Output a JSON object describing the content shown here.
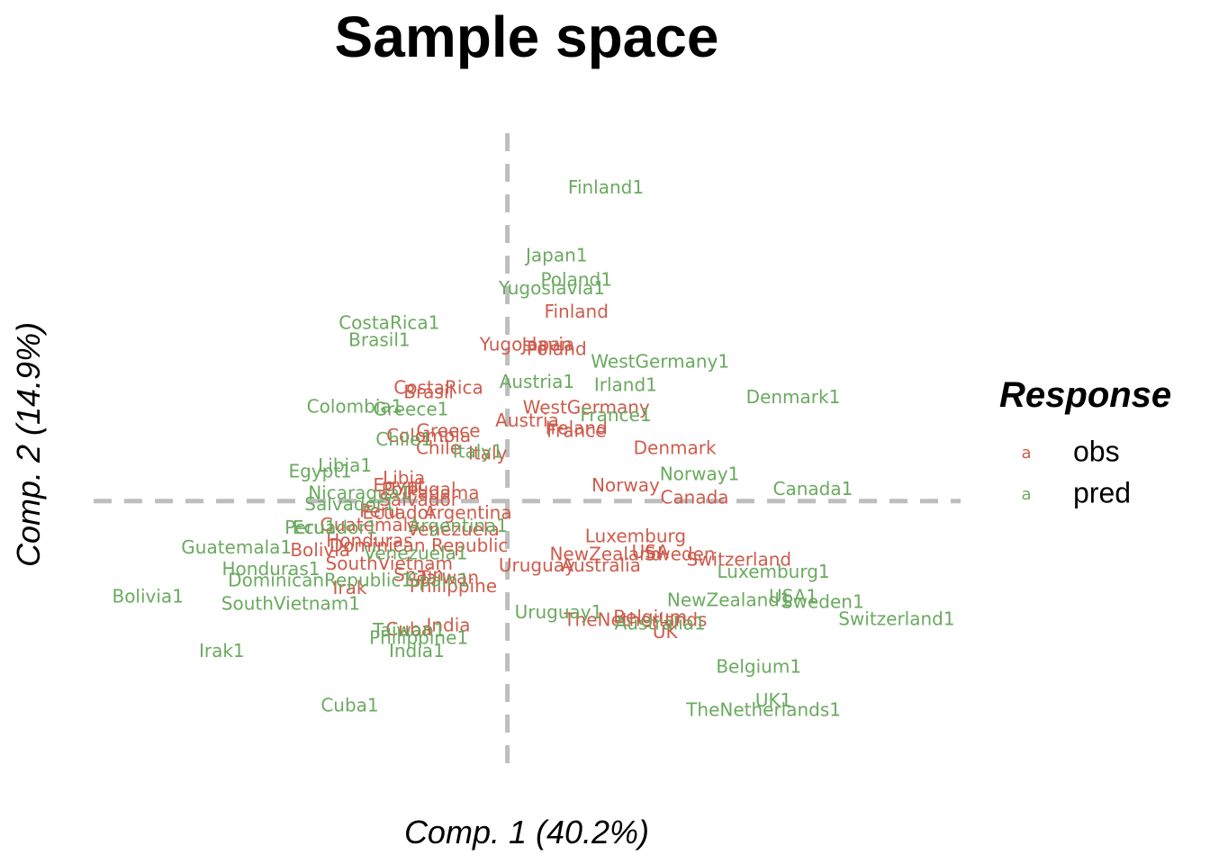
{
  "chart_data": {
    "type": "scatter",
    "title": "Sample space",
    "xlabel": "Comp. 1 (40.2%)",
    "ylabel": "Comp. 2 (14.9%)",
    "xlim": [
      -4.2,
      4.6
    ],
    "ylim": [
      -3.14,
      4.26
    ],
    "reference_lines": {
      "x": 0,
      "y": 0,
      "style": "dashed",
      "color": "#bebebe"
    },
    "grid": false,
    "legend": {
      "title": "Response",
      "position": "right",
      "key_glyph": "a"
    },
    "series": [
      {
        "name": "obs",
        "color": "#cd5c4c",
        "points": [
          {
            "label": "Finland",
            "x": 0.7,
            "y": 2.18
          },
          {
            "label": "Yugoslavia",
            "x": 0.2,
            "y": 1.8
          },
          {
            "label": "Japan",
            "x": 0.4,
            "y": 1.8
          },
          {
            "label": "Poland",
            "x": 0.5,
            "y": 1.75
          },
          {
            "label": "CostaRica",
            "x": -0.7,
            "y": 1.3
          },
          {
            "label": "Brasil",
            "x": -0.8,
            "y": 1.25
          },
          {
            "label": "Austria",
            "x": 0.2,
            "y": 0.92
          },
          {
            "label": "WestGermany",
            "x": 0.8,
            "y": 1.07
          },
          {
            "label": "Ireland",
            "x": 0.7,
            "y": 0.83
          },
          {
            "label": "France",
            "x": 0.7,
            "y": 0.8
          },
          {
            "label": "Greece",
            "x": -0.6,
            "y": 0.8
          },
          {
            "label": "Colombia",
            "x": -0.8,
            "y": 0.74
          },
          {
            "label": "Chile",
            "x": -0.7,
            "y": 0.6
          },
          {
            "label": "Italy",
            "x": -0.2,
            "y": 0.54
          },
          {
            "label": "Denmark",
            "x": 1.7,
            "y": 0.6
          },
          {
            "label": "Norway",
            "x": 1.2,
            "y": 0.17
          },
          {
            "label": "Canada",
            "x": 1.9,
            "y": 0.03
          },
          {
            "label": "Libia",
            "x": -1.05,
            "y": 0.25
          },
          {
            "label": "Egypt",
            "x": -1.1,
            "y": 0.17
          },
          {
            "label": "Portugal",
            "x": -0.9,
            "y": 0.12
          },
          {
            "label": "Panama",
            "x": -0.65,
            "y": 0.08
          },
          {
            "label": "Salvador",
            "x": -0.9,
            "y": 0.0
          },
          {
            "label": "Peru",
            "x": -1.3,
            "y": -0.13
          },
          {
            "label": "Ecuador",
            "x": -1.1,
            "y": -0.15
          },
          {
            "label": "Argentina",
            "x": -0.4,
            "y": -0.15
          },
          {
            "label": "Guatemala",
            "x": -1.4,
            "y": -0.29
          },
          {
            "label": "Venezuela",
            "x": -0.55,
            "y": -0.34
          },
          {
            "label": "Honduras",
            "x": -1.4,
            "y": -0.47
          },
          {
            "label": "Bolivia",
            "x": -1.9,
            "y": -0.58
          },
          {
            "label": "Dominican Republic",
            "x": -0.9,
            "y": -0.53
          },
          {
            "label": "SouthVietnam",
            "x": -1.2,
            "y": -0.74
          },
          {
            "label": "Spain",
            "x": -0.9,
            "y": -0.87
          },
          {
            "label": "Taiwan",
            "x": -0.6,
            "y": -0.9
          },
          {
            "label": "Philippine",
            "x": -0.55,
            "y": -1.0
          },
          {
            "label": "Irak",
            "x": -1.6,
            "y": -1.02
          },
          {
            "label": "Cuba",
            "x": -1.0,
            "y": -1.5
          },
          {
            "label": "India",
            "x": -0.6,
            "y": -1.45
          },
          {
            "label": "Luxemburg",
            "x": 1.3,
            "y": -0.42
          },
          {
            "label": "NewZealand",
            "x": 1.0,
            "y": -0.63
          },
          {
            "label": "USA",
            "x": 1.45,
            "y": -0.6
          },
          {
            "label": "Sweden",
            "x": 1.75,
            "y": -0.63
          },
          {
            "label": "Switzerland",
            "x": 2.35,
            "y": -0.69
          },
          {
            "label": "Uruguay",
            "x": 0.3,
            "y": -0.76
          },
          {
            "label": "Australia",
            "x": 0.95,
            "y": -0.76
          },
          {
            "label": "Belgium",
            "x": 1.45,
            "y": -1.36
          },
          {
            "label": "TheNetherlands",
            "x": 1.3,
            "y": -1.39
          },
          {
            "label": "UK",
            "x": 1.6,
            "y": -1.53
          }
        ]
      },
      {
        "name": "pred",
        "color": "#6aaa5f",
        "points": [
          {
            "label": "Finland1",
            "x": 1.0,
            "y": 3.62
          },
          {
            "label": "Japan1",
            "x": 0.5,
            "y": 2.83
          },
          {
            "label": "Poland1",
            "x": 0.7,
            "y": 2.55
          },
          {
            "label": "Yugoslavia1",
            "x": 0.45,
            "y": 2.45
          },
          {
            "label": "CostaRica1",
            "x": -1.2,
            "y": 2.05
          },
          {
            "label": "Brasil1",
            "x": -1.3,
            "y": 1.85
          },
          {
            "label": "WestGermany1",
            "x": 1.55,
            "y": 1.6
          },
          {
            "label": "Austria1",
            "x": 0.3,
            "y": 1.37
          },
          {
            "label": "Irland1",
            "x": 1.2,
            "y": 1.33
          },
          {
            "label": "Denmark1",
            "x": 2.9,
            "y": 1.19
          },
          {
            "label": "Colombia1",
            "x": -1.55,
            "y": 1.08
          },
          {
            "label": "Greece1",
            "x": -0.98,
            "y": 1.05
          },
          {
            "label": "France1",
            "x": 1.1,
            "y": 0.98
          },
          {
            "label": "Chile1",
            "x": -1.05,
            "y": 0.7
          },
          {
            "label": "Italy1",
            "x": -0.3,
            "y": 0.56
          },
          {
            "label": "Libia1",
            "x": -1.65,
            "y": 0.4
          },
          {
            "label": "Egypt1",
            "x": -1.9,
            "y": 0.33
          },
          {
            "label": "Norway1",
            "x": 1.95,
            "y": 0.3
          },
          {
            "label": "Nicaragua1",
            "x": -1.5,
            "y": 0.08
          },
          {
            "label": "Canada1",
            "x": 3.1,
            "y": 0.13
          },
          {
            "label": "Salvador1",
            "x": -1.6,
            "y": -0.05
          },
          {
            "label": "Peru1",
            "x": -2.0,
            "y": -0.32
          },
          {
            "label": "Ecuador1",
            "x": -1.75,
            "y": -0.32
          },
          {
            "label": "Argentina1",
            "x": -0.5,
            "y": -0.3
          },
          {
            "label": "Guatemala1",
            "x": -2.75,
            "y": -0.55
          },
          {
            "label": "Venezuela1",
            "x": -0.93,
            "y": -0.62
          },
          {
            "label": "Honduras1",
            "x": -2.4,
            "y": -0.8
          },
          {
            "label": "DominicanRepublic1",
            "x": -1.9,
            "y": -0.93
          },
          {
            "label": "Spain1",
            "x": -0.7,
            "y": -0.93
          },
          {
            "label": "Bolivia1",
            "x": -3.65,
            "y": -1.12
          },
          {
            "label": "SouthVietnam1",
            "x": -2.2,
            "y": -1.2
          },
          {
            "label": "Uruguay1",
            "x": 0.52,
            "y": -1.3
          },
          {
            "label": "Australia1",
            "x": 1.55,
            "y": -1.43
          },
          {
            "label": "NewZealand1",
            "x": 2.25,
            "y": -1.16
          },
          {
            "label": "USA1",
            "x": 2.9,
            "y": -1.12
          },
          {
            "label": "Sweden1",
            "x": 3.2,
            "y": -1.18
          },
          {
            "label": "Luxemburg1",
            "x": 2.7,
            "y": -0.83
          },
          {
            "label": "Switzerland1",
            "x": 3.95,
            "y": -1.38
          },
          {
            "label": "Taiwan1",
            "x": -1.0,
            "y": -1.51
          },
          {
            "label": "Philippine1",
            "x": -0.9,
            "y": -1.6
          },
          {
            "label": "India1",
            "x": -0.92,
            "y": -1.75
          },
          {
            "label": "Irak1",
            "x": -2.9,
            "y": -1.75
          },
          {
            "label": "Belgium1",
            "x": 2.55,
            "y": -1.93
          },
          {
            "label": "UK1",
            "x": 2.7,
            "y": -2.32
          },
          {
            "label": "TheNetherlands1",
            "x": 2.6,
            "y": -2.43
          },
          {
            "label": "Cuba1",
            "x": -1.6,
            "y": -2.38
          }
        ]
      }
    ]
  }
}
